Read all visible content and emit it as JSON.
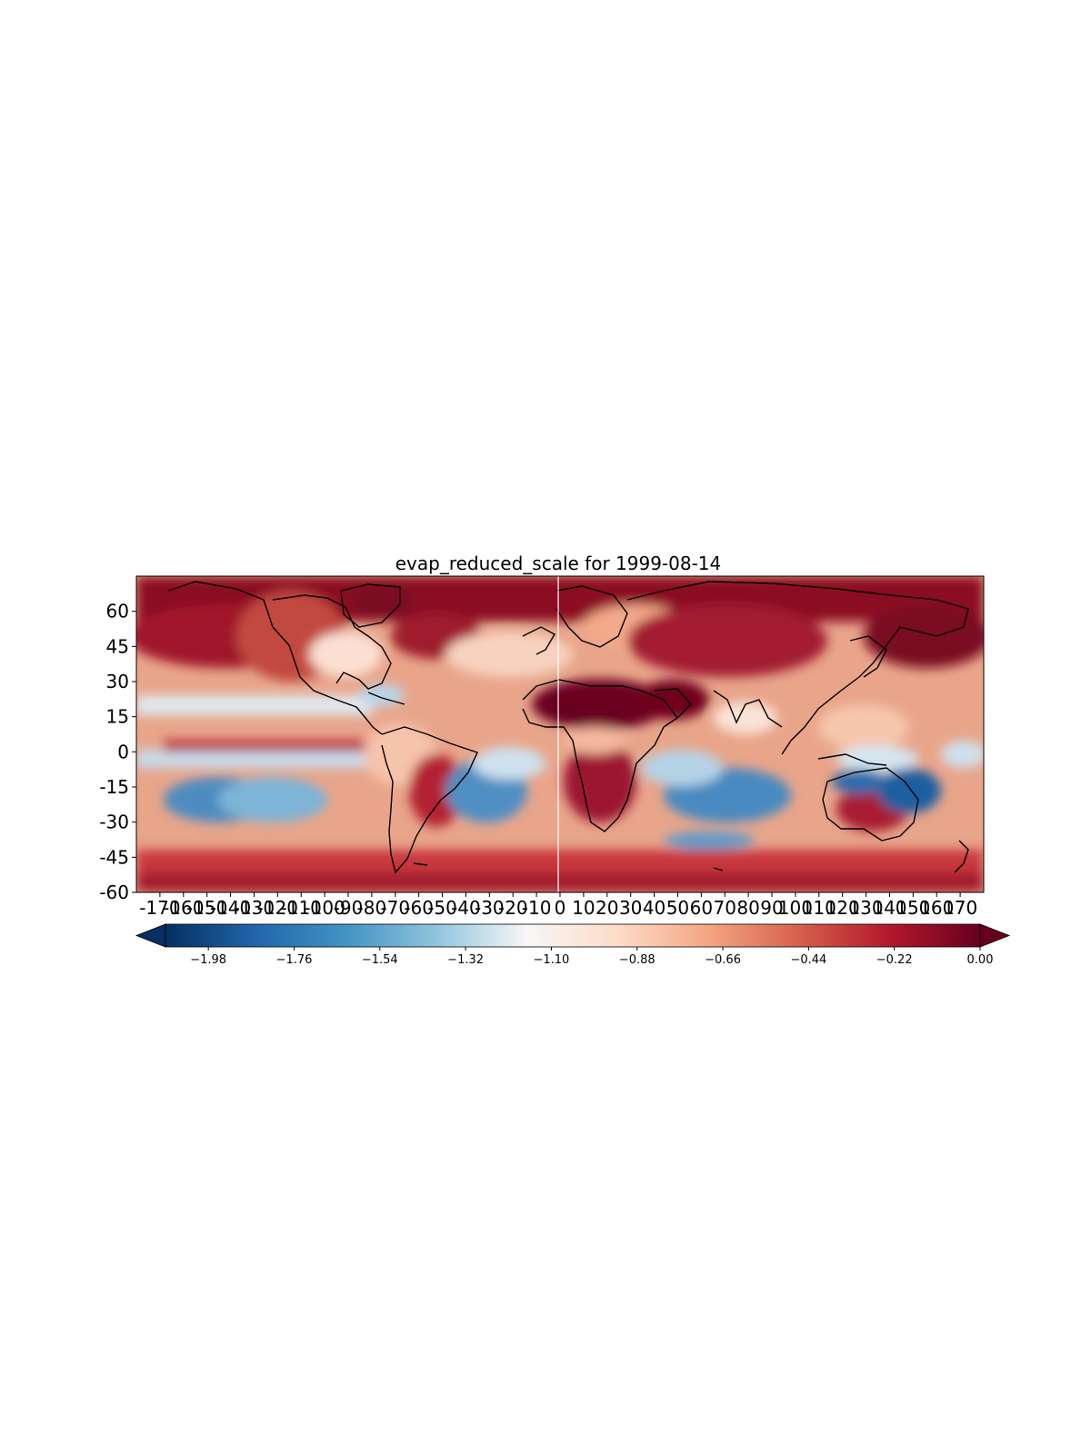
{
  "title": "evap_reduced_scale for 1999-08-14",
  "chart_data": {
    "type": "heatmap",
    "projection": "PlateCarree (global lat/lon)",
    "title": "evap_reduced_scale for 1999-08-14",
    "xlim": [
      -180,
      180
    ],
    "ylim": [
      -60,
      75
    ],
    "y_ticks": [
      "60",
      "45",
      "30",
      "15",
      "0",
      "-15",
      "-30",
      "-45",
      "-60"
    ],
    "y_tick_values": [
      60,
      45,
      30,
      15,
      0,
      -15,
      -30,
      -45,
      -60
    ],
    "x_ticks": [
      "-170",
      "-160",
      "-150",
      "-140",
      "-130",
      "-120",
      "-110",
      "-100",
      "-90",
      "-80",
      "-70",
      "-60",
      "-50",
      "-40",
      "-30",
      "-20",
      "-10",
      "0",
      "10",
      "20",
      "30",
      "40",
      "50",
      "60",
      "70",
      "80",
      "90",
      "100",
      "110",
      "120",
      "130",
      "140",
      "150",
      "160",
      "170"
    ],
    "x_tick_values": [
      -170,
      -160,
      -150,
      -140,
      -130,
      -120,
      -110,
      -100,
      -90,
      -80,
      -70,
      -60,
      -50,
      -40,
      -30,
      -20,
      -10,
      0,
      10,
      20,
      30,
      40,
      50,
      60,
      70,
      80,
      90,
      100,
      110,
      120,
      130,
      140,
      150,
      160,
      170
    ],
    "colormap": "RdBu_r",
    "colormap_colors": [
      "#053061",
      "#2166ac",
      "#4393c3",
      "#92c5de",
      "#f7f7f7",
      "#fddbc7",
      "#f4a582",
      "#d6604d",
      "#b2182b",
      "#67001f"
    ],
    "color_range": [
      -2.09,
      0.0
    ],
    "colorbar": {
      "orientation": "horizontal",
      "extend": "both",
      "ticks": [
        "−1.98",
        "−1.76",
        "−1.54",
        "−1.32",
        "−1.10",
        "−0.88",
        "−0.66",
        "−0.44",
        "−0.22",
        "0.00"
      ],
      "tick_values": [
        -1.98,
        -1.76,
        -1.54,
        -1.32,
        -1.1,
        -0.88,
        -0.66,
        -0.44,
        -0.22,
        0.0
      ]
    },
    "coastlines": true,
    "grid": false
  }
}
